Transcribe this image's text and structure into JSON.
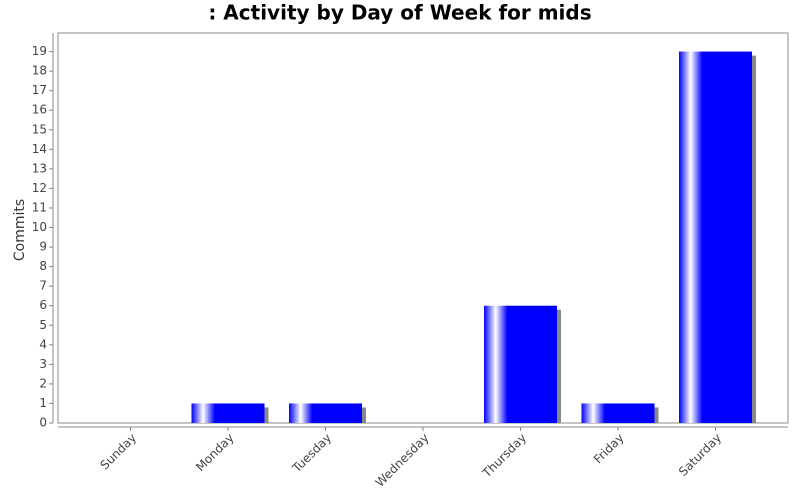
{
  "chart_data": {
    "type": "bar",
    "title": ": Activity by Day of Week for mids",
    "y_label": "Commits",
    "categories": [
      "Sunday",
      "Monday",
      "Tuesday",
      "Wednesday",
      "Thursday",
      "Friday",
      "Saturday"
    ],
    "values": [
      0,
      1,
      1,
      0,
      6,
      1,
      19
    ],
    "color": "#0000ff",
    "ylim": [
      0,
      19.95
    ],
    "yticks": [
      0,
      1,
      2,
      3,
      4,
      5,
      6,
      7,
      8,
      9,
      10,
      11,
      12,
      13,
      14,
      15,
      16,
      17,
      18,
      19
    ],
    "grid": false
  }
}
